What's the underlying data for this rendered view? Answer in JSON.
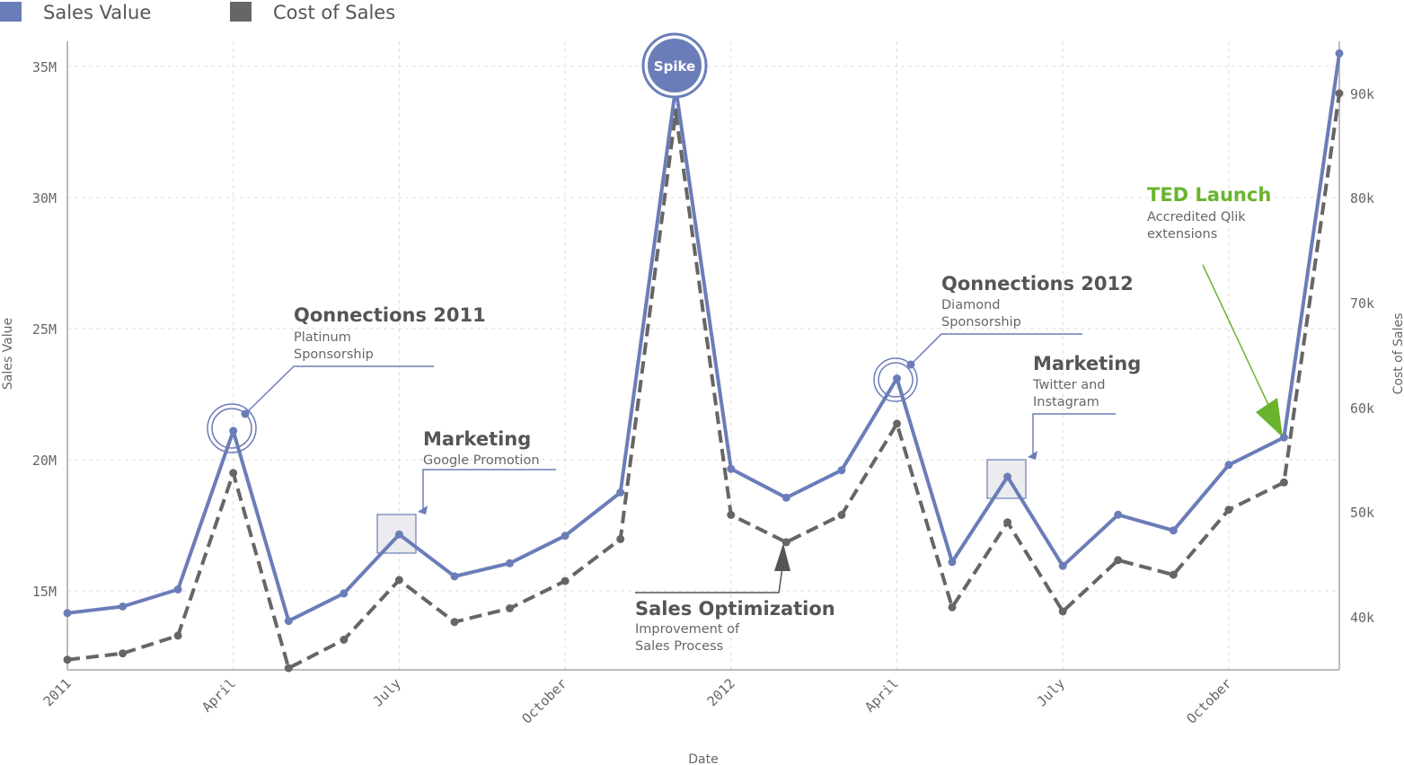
{
  "legend": {
    "items": [
      {
        "label": "Sales Value",
        "color": "#6b7db8"
      },
      {
        "label": "Cost of Sales",
        "color": "#666666"
      }
    ],
    "position": "top-left"
  },
  "chart_data": {
    "type": "line",
    "xlabel": "Date",
    "ylabel": "Sales Value",
    "y2label": "Cost of Sales",
    "x_tick_labels": [
      "2011",
      "April",
      "July",
      "October",
      "2012",
      "April",
      "July",
      "October"
    ],
    "y_ticks": [
      "15M",
      "20M",
      "25M",
      "30M",
      "35M"
    ],
    "y2_ticks": [
      "40k",
      "50k",
      "60k",
      "70k",
      "80k",
      "90k"
    ],
    "ylim": [
      12000000,
      36000000
    ],
    "y2lim": [
      35000,
      95000
    ],
    "grid": true,
    "x": [
      "2011-01",
      "2011-02",
      "2011-03",
      "2011-04",
      "2011-05",
      "2011-06",
      "2011-07",
      "2011-08",
      "2011-09",
      "2011-10",
      "2011-11",
      "2011-12",
      "2012-01",
      "2012-02",
      "2012-03",
      "2012-04",
      "2012-05",
      "2012-06",
      "2012-07",
      "2012-08",
      "2012-09",
      "2012-10",
      "2012-11",
      "2012-12"
    ],
    "series": [
      {
        "name": "Sales Value",
        "axis": "left",
        "color": "#6b7db8",
        "style": "solid",
        "values": [
          14150000,
          14400000,
          15050000,
          21100000,
          13850000,
          14900000,
          17150000,
          15550000,
          16050000,
          17100000,
          18750000,
          34200000,
          19650000,
          18550000,
          19600000,
          23100000,
          16100000,
          19350000,
          15950000,
          17900000,
          17300000,
          19800000,
          20850000,
          35500000
        ]
      },
      {
        "name": "Cost of Sales",
        "axis": "right",
        "color": "#666666",
        "style": "dashed",
        "values": [
          36000,
          36600,
          38300,
          53800,
          35200,
          37900,
          43600,
          39600,
          40900,
          43500,
          47500,
          88200,
          49800,
          47200,
          49800,
          58500,
          41000,
          49100,
          40600,
          45500,
          44100,
          50300,
          52900,
          90000
        ]
      }
    ],
    "annotations": [
      {
        "title": "Qonnections 2011",
        "subtitle": "Platinum\nSponsorship",
        "month": "2011-04",
        "marker": "circle"
      },
      {
        "title": "Marketing",
        "subtitle": "Google Promotion",
        "month": "2011-07",
        "marker": "box"
      },
      {
        "title": "",
        "subtitle": "",
        "badge": "Spike",
        "month": "2011-12",
        "marker": "badge"
      },
      {
        "title": "Sales Optimization",
        "subtitle": "Improvement of\nSales Process",
        "month": "2012-02",
        "marker": "arrow"
      },
      {
        "title": "Qonnections 2012",
        "subtitle": "Diamond\nSponsorship",
        "month": "2012-04",
        "marker": "circle"
      },
      {
        "title": "Marketing",
        "subtitle": "Twitter and\nInstagram",
        "month": "2012-06",
        "marker": "box"
      },
      {
        "title": "TED Launch",
        "subtitle": "Accredited Qlik\nextensions",
        "month": "2012-11",
        "marker": "green-arrow",
        "color": "#6ab42d"
      }
    ]
  }
}
